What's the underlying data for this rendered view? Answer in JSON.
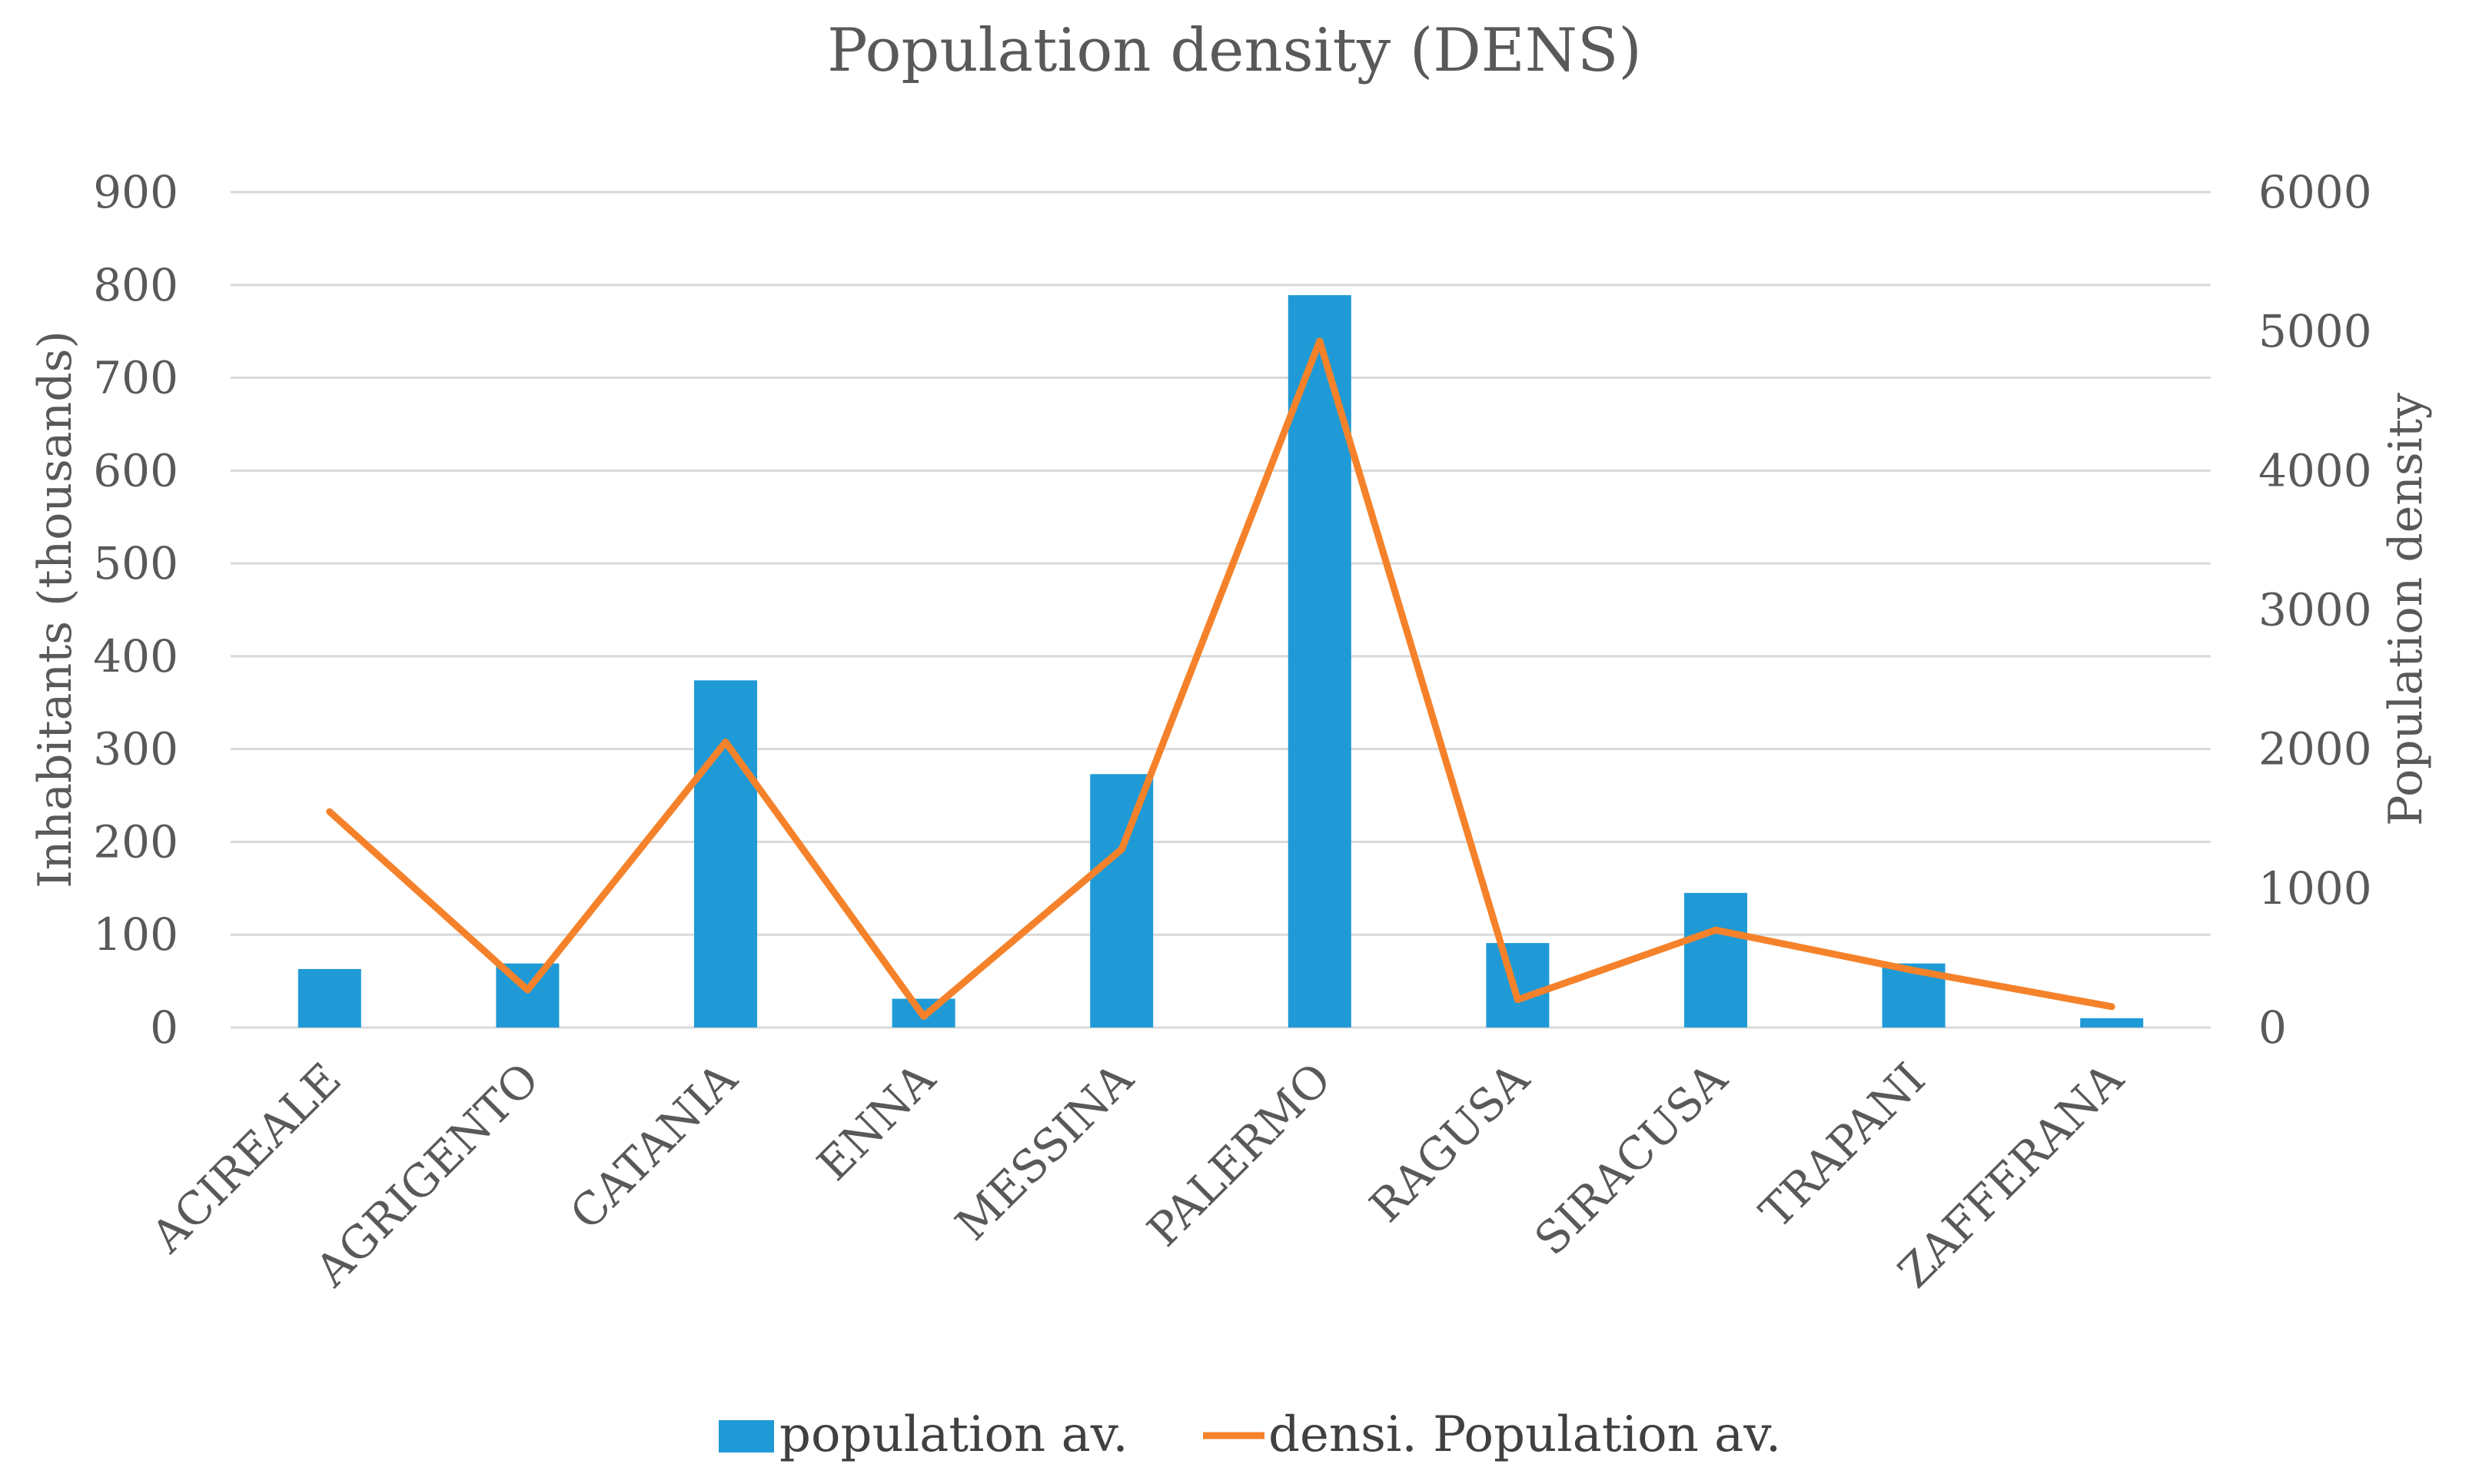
{
  "chart_data": {
    "type": "bar+line",
    "title": "Population density (DENS)",
    "categories": [
      "ACIREALE",
      "AGRIGENTO",
      "CATANIA",
      "ENNA",
      "MESSINA",
      "PALERMO",
      "RAGUSA",
      "SIRACUSA",
      "TRAPANI",
      "ZAFFERANA"
    ],
    "series": [
      {
        "name": "population av.",
        "type": "bar",
        "axis": "left",
        "color": "#1f9ad6",
        "values": [
          63,
          69,
          374,
          31,
          273,
          789,
          91,
          145,
          69,
          10
        ]
      },
      {
        "name": "densi. Population av.",
        "type": "line",
        "axis": "right",
        "color": "#f5822a",
        "values": [
          1550,
          270,
          2050,
          80,
          1280,
          4930,
          200,
          700,
          410,
          150
        ]
      }
    ],
    "ylabel": "Inhabitants (thousands)",
    "y2label": "Population density",
    "ylim": [
      0,
      900
    ],
    "y2lim": [
      0,
      6000
    ],
    "yticks": [
      "0",
      "100",
      "200",
      "300",
      "400",
      "500",
      "600",
      "700",
      "800",
      "900"
    ],
    "y2ticks": [
      "0",
      "1000",
      "2000",
      "3000",
      "4000",
      "5000",
      "6000"
    ],
    "grid": true,
    "legend_position": "bottom"
  }
}
